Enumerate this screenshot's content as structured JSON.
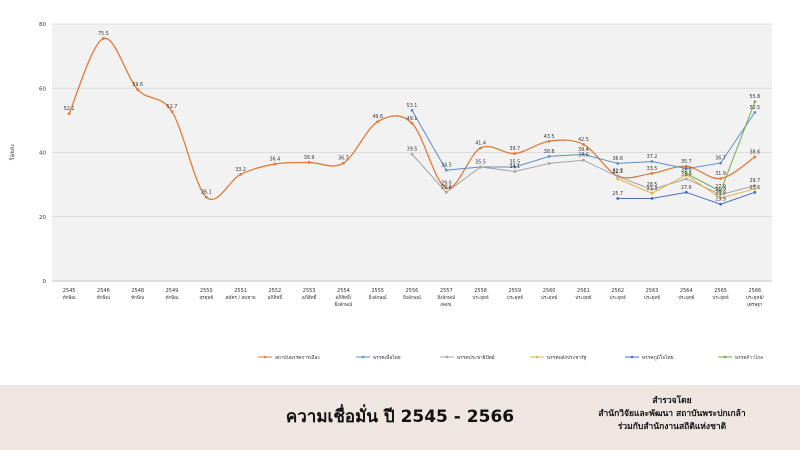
{
  "chart_data": {
    "type": "line",
    "title": "",
    "ylabel": "ร้อยละ",
    "ylim": [
      0,
      80
    ],
    "yticks": [
      0,
      20,
      40,
      60,
      80
    ],
    "grid": true,
    "legend_position": "bottom",
    "categories": [
      {
        "year": "2545",
        "sub": [
          "ทักษิณ"
        ]
      },
      {
        "year": "2546",
        "sub": [
          "ทักษิณ"
        ]
      },
      {
        "year": "2548",
        "sub": [
          "ทักษิณ"
        ]
      },
      {
        "year": "2549",
        "sub": [
          "ทักษิณ"
        ]
      },
      {
        "year": "2550",
        "sub": [
          "สุรยุทธ์"
        ]
      },
      {
        "year": "2551",
        "sub": [
          "สมัคร / สมชาย"
        ]
      },
      {
        "year": "2552",
        "sub": [
          "อภิสิทธิ์"
        ]
      },
      {
        "year": "2553",
        "sub": [
          "อภิสิทธิ์"
        ]
      },
      {
        "year": "2554",
        "sub": [
          "อภิสิทธิ์/",
          "ยิ่งลักษณ์"
        ]
      },
      {
        "year": "2555",
        "sub": [
          "ยิ่งลักษณ์"
        ]
      },
      {
        "year": "2556",
        "sub": [
          "ยิ่งลักษณ์"
        ]
      },
      {
        "year": "2557",
        "sub": [
          "ยิ่งลักษณ์",
          "/คสช."
        ]
      },
      {
        "year": "2558",
        "sub": [
          "ประยุทธ์"
        ]
      },
      {
        "year": "2559",
        "sub": [
          "ประยุทธ์"
        ]
      },
      {
        "year": "2560",
        "sub": [
          "ประยุทธ์"
        ]
      },
      {
        "year": "2561",
        "sub": [
          "ประยุทธ์"
        ]
      },
      {
        "year": "2562",
        "sub": [
          "ประยุทธ์"
        ]
      },
      {
        "year": "2563",
        "sub": [
          "ประยุทธ์"
        ]
      },
      {
        "year": "2564",
        "sub": [
          "ประยุทธ์"
        ]
      },
      {
        "year": "2565",
        "sub": [
          "ประยุทธ์"
        ]
      },
      {
        "year": "2566",
        "sub": [
          "ประยุทธ์/",
          "เศรษฐา"
        ]
      }
    ],
    "series": [
      {
        "name": "สถาบันพรรคการเมือง",
        "color": "#e07b39",
        "smooth": true,
        "values": [
          52.1,
          75.5,
          59.6,
          52.7,
          26.1,
          33.2,
          36.4,
          36.9,
          36.7,
          49.6,
          49.1,
          29.0,
          41.4,
          39.7,
          43.5,
          42.5,
          32.7,
          33.5,
          35.7,
          31.9,
          38.6
        ],
        "labels": [
          "52.1",
          "75.5",
          "59.6",
          "52.7",
          "26.1",
          "33.2",
          "36.4",
          "36.9",
          "36.7",
          "49.6",
          "49.1",
          "29.0",
          "41.4",
          "39.7",
          "43.5",
          "42.5",
          "32.7",
          "33.5",
          "35.7",
          "31.9",
          "38.6"
        ]
      },
      {
        "name": "พรรคเพื่อไทย",
        "color": "#5b8fc9",
        "values": [
          null,
          null,
          null,
          null,
          null,
          null,
          null,
          null,
          null,
          null,
          53.1,
          34.5,
          35.5,
          35.5,
          38.8,
          39.4,
          36.6,
          37.2,
          35.0,
          36.7,
          52.5
        ],
        "labels": [
          null,
          null,
          null,
          null,
          null,
          null,
          null,
          null,
          null,
          null,
          "53.1",
          "34.5",
          "35.5",
          "35.5",
          "38.8",
          "39.4",
          "36.6",
          "37.2",
          "",
          "36.7",
          "52.5"
        ]
      },
      {
        "name": "พรรคประชาธิปัตย์",
        "color": "#a5a5a5",
        "values": [
          null,
          null,
          null,
          null,
          null,
          null,
          null,
          null,
          null,
          null,
          39.5,
          27.6,
          35.5,
          34.1,
          36.6,
          37.6,
          32.5,
          28.5,
          31.8,
          26.9,
          29.7
        ],
        "labels": [
          null,
          null,
          null,
          null,
          null,
          null,
          null,
          null,
          null,
          null,
          "39.5",
          "27.6",
          "",
          "34.1",
          "",
          "37.6",
          "32.5",
          "28.5",
          "31.8",
          "26.9",
          "29.7"
        ]
      },
      {
        "name": "พรรคพลังประชารัฐ",
        "color": "#e3b341",
        "values": [
          null,
          null,
          null,
          null,
          null,
          null,
          null,
          null,
          null,
          null,
          null,
          null,
          null,
          null,
          null,
          null,
          31.8,
          27.3,
          33.0,
          25.8,
          28.7
        ],
        "labels": [
          null,
          null,
          null,
          null,
          null,
          null,
          null,
          null,
          null,
          null,
          null,
          null,
          null,
          null,
          null,
          null,
          "",
          "27.3",
          "33.0",
          "25.8",
          ""
        ]
      },
      {
        "name": "พรรคภูมิใจไทย",
        "color": "#4c6bbf",
        "values": [
          null,
          null,
          null,
          null,
          null,
          null,
          null,
          null,
          null,
          null,
          null,
          null,
          null,
          null,
          null,
          null,
          25.7,
          25.7,
          27.6,
          23.9,
          27.6
        ],
        "labels": [
          null,
          null,
          null,
          null,
          null,
          null,
          null,
          null,
          null,
          null,
          null,
          null,
          null,
          null,
          null,
          null,
          "25.7",
          "",
          "27.6",
          "23.9",
          "27.6"
        ]
      },
      {
        "name": "พรรคก้าวไกล",
        "color": "#70ad47",
        "values": [
          null,
          null,
          null,
          null,
          null,
          null,
          null,
          null,
          null,
          null,
          null,
          null,
          null,
          null,
          null,
          null,
          null,
          null,
          33.5,
          27.9,
          55.8
        ],
        "labels": [
          null,
          null,
          null,
          null,
          null,
          null,
          null,
          null,
          null,
          null,
          null,
          null,
          null,
          null,
          null,
          null,
          null,
          null,
          "",
          "27.9",
          "55.8"
        ]
      }
    ]
  },
  "footer": {
    "title": "ความเชื่อมั่น ปี 2545 - 2566",
    "credit_line1": "สำรวจโดย",
    "credit_line2": "สำนักวิจัยและพัฒนา สถาบันพระปกเกล้า",
    "credit_line3": "ร่วมกับสำนักงานสถิติแห่งชาติ"
  }
}
